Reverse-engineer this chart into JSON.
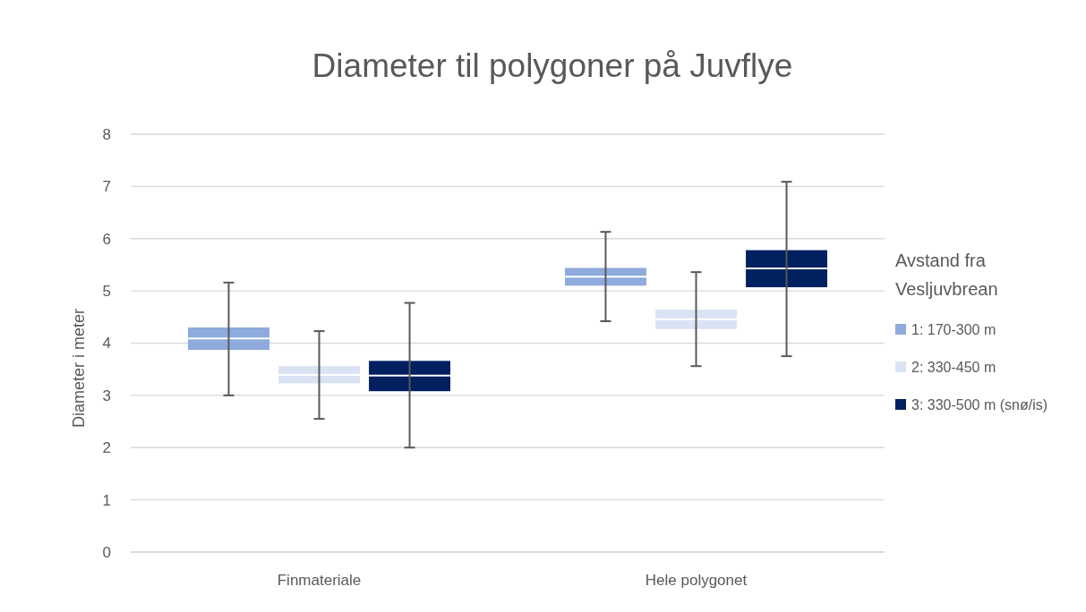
{
  "chart_data": {
    "type": "box",
    "title": "Diameter til polygoner på Juvflye",
    "ylabel": "Diameter i meter",
    "legend_title": "Avstand fra Vesljuvbrean",
    "categories": [
      "Finmateriale",
      "Hele polygonet"
    ],
    "ylim": [
      0,
      8
    ],
    "yticks": [
      0,
      1,
      2,
      3,
      4,
      5,
      6,
      7,
      8
    ],
    "grid": "y",
    "legend": "right",
    "series": [
      {
        "name": "1: 170-300 m",
        "color": "#8faadc",
        "boxes": [
          {
            "low": 3.0,
            "q1": 3.87,
            "median": 4.09,
            "q3": 4.3,
            "high": 5.16
          },
          {
            "low": 4.42,
            "q1": 5.1,
            "median": 5.27,
            "q3": 5.44,
            "high": 6.13
          }
        ]
      },
      {
        "name": "2: 330-450 m",
        "color": "#dae3f3",
        "boxes": [
          {
            "low": 2.55,
            "q1": 3.23,
            "median": 3.39,
            "q3": 3.56,
            "high": 4.23
          },
          {
            "low": 3.56,
            "q1": 4.27,
            "median": 4.46,
            "q3": 4.64,
            "high": 5.36
          }
        ]
      },
      {
        "name": "3: 330-500 m (snø/is)",
        "color": "#002060",
        "boxes": [
          {
            "low": 2.0,
            "q1": 3.08,
            "median": 3.38,
            "q3": 3.66,
            "high": 4.77
          },
          {
            "low": 3.75,
            "q1": 5.07,
            "median": 5.43,
            "q3": 5.78,
            "high": 7.09
          }
        ]
      }
    ]
  }
}
